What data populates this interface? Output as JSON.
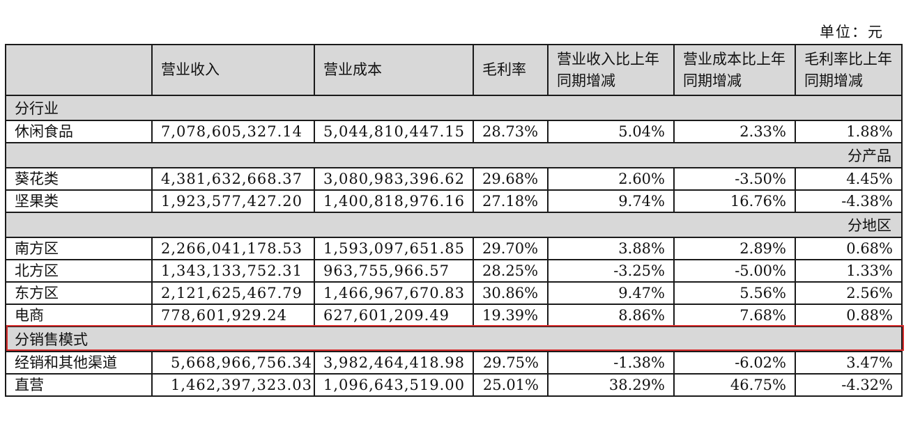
{
  "unit_label": "单位：元",
  "headers": [
    "",
    "营业收入",
    "营业成本",
    "毛利率",
    "营业收入比上年同期增减",
    "营业成本比上年同期增减",
    "毛利率比上年同期增减"
  ],
  "sections": [
    {
      "title": "分行业",
      "align": "left",
      "rows": [
        {
          "name": "休闲食品",
          "revenue": "7,078,605,327.14",
          "cost": "5,044,810,447.15",
          "margin": "28.73%",
          "rev_change": "5.04%",
          "cost_change": "2.33%",
          "margin_change": "1.88%"
        }
      ]
    },
    {
      "title": "分产品",
      "align": "right",
      "rows": [
        {
          "name": "葵花类",
          "revenue": "4,381,632,668.37",
          "cost": "3,080,983,396.62",
          "margin": "29.68%",
          "rev_change": "2.60%",
          "cost_change": "-3.50%",
          "margin_change": "4.45%"
        },
        {
          "name": "坚果类",
          "revenue": "1,923,577,427.20",
          "cost": "1,400,818,976.16",
          "margin": "27.18%",
          "rev_change": "9.74%",
          "cost_change": "16.76%",
          "margin_change": "-4.38%"
        }
      ]
    },
    {
      "title": "分地区",
      "align": "right",
      "rows": [
        {
          "name": "南方区",
          "revenue": "2,266,041,178.53",
          "cost": "1,593,097,651.85",
          "margin": "29.70%",
          "rev_change": "3.88%",
          "cost_change": "2.89%",
          "margin_change": "0.68%"
        },
        {
          "name": "北方区",
          "revenue": "1,343,133,752.31",
          "cost": "963,755,966.57",
          "margin": "28.25%",
          "rev_change": "-3.25%",
          "cost_change": "-5.00%",
          "margin_change": "1.33%"
        },
        {
          "name": "东方区",
          "revenue": "2,121,625,467.79",
          "cost": "1,466,967,670.83",
          "margin": "30.86%",
          "rev_change": "9.47%",
          "cost_change": "5.56%",
          "margin_change": "2.56%"
        },
        {
          "name": "电商",
          "revenue": "778,601,929.24",
          "cost": "627,601,209.49",
          "margin": "19.39%",
          "rev_change": "8.86%",
          "cost_change": "7.68%",
          "margin_change": "0.88%"
        }
      ]
    },
    {
      "title": "分销售模式",
      "align": "left",
      "rows": [
        {
          "name": "经销和其他渠道",
          "revenue": "5,668,966,756.34",
          "cost": "3,982,464,418.98",
          "margin": "29.75%",
          "rev_change": "-1.38%",
          "cost_change": "-6.02%",
          "margin_change": "3.47%"
        },
        {
          "name": "直营",
          "revenue": "1,462,397,323.03",
          "cost": "1,096,643,519.00",
          "margin": "25.01%",
          "rev_change": "38.29%",
          "cost_change": "46.75%",
          "margin_change": "-4.32%"
        }
      ]
    }
  ],
  "colors": {
    "header_bg": "#d8d8d8",
    "highlight_border": "#d62a2a"
  }
}
